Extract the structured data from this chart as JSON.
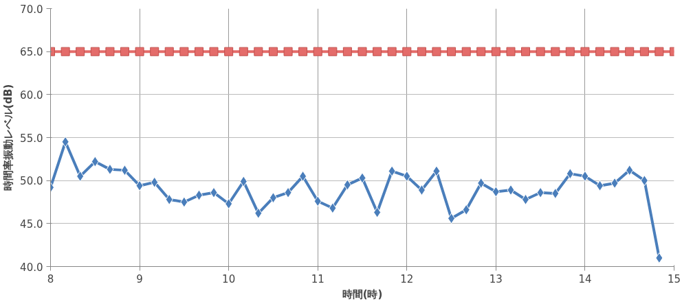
{
  "chart_data": {
    "type": "line",
    "xlabel": "時間(時)",
    "ylabel": "時間率振動レベル(dB)",
    "xlim": [
      8,
      15
    ],
    "xticks": [
      8,
      9,
      10,
      11,
      12,
      13,
      14,
      15
    ],
    "ylim": [
      40,
      70
    ],
    "yticks": [
      {
        "value": 40,
        "label": "40.0"
      },
      {
        "value": 45,
        "label": "45.0"
      },
      {
        "value": 50,
        "label": "50.0"
      },
      {
        "value": 55,
        "label": "55.0"
      },
      {
        "value": 60,
        "label": "60.0"
      },
      {
        "value": 65,
        "label": "65.0"
      },
      {
        "value": 70,
        "label": "70.0"
      }
    ],
    "grid": true,
    "line_style": "solid",
    "series": [
      {
        "color": "#4a7ebb",
        "marker": "diamond",
        "x": [
          8,
          8.167,
          8.333,
          8.5,
          8.667,
          8.833,
          9,
          9.167,
          9.333,
          9.5,
          9.667,
          9.833,
          10,
          10.167,
          10.333,
          10.5,
          10.667,
          10.833,
          11,
          11.167,
          11.333,
          11.5,
          11.667,
          11.833,
          12,
          12.167,
          12.333,
          12.5,
          12.667,
          12.833,
          13,
          13.167,
          13.333,
          13.5,
          13.667,
          13.833,
          14,
          14.167,
          14.333,
          14.5,
          14.667,
          14.833
        ],
        "values": [
          49.2,
          54.5,
          50.5,
          52.2,
          51.3,
          51.2,
          49.4,
          49.8,
          47.8,
          47.5,
          48.3,
          48.6,
          47.3,
          49.9,
          46.2,
          48.0,
          48.6,
          50.5,
          47.6,
          46.8,
          49.5,
          50.3,
          46.3,
          51.1,
          50.5,
          48.9,
          51.1,
          45.6,
          46.6,
          49.7,
          48.7,
          48.9,
          47.8,
          48.6,
          48.5,
          50.8,
          50.5,
          49.4,
          49.7,
          51.2,
          50.0,
          41.0
        ]
      },
      {
        "color": "#e46c6a",
        "marker": "square",
        "x": [
          8,
          8.167,
          8.333,
          8.5,
          8.667,
          8.833,
          9,
          9.167,
          9.333,
          9.5,
          9.667,
          9.833,
          10,
          10.167,
          10.333,
          10.5,
          10.667,
          10.833,
          11,
          11.167,
          11.333,
          11.5,
          11.667,
          11.833,
          12,
          12.167,
          12.333,
          12.5,
          12.667,
          12.833,
          13,
          13.167,
          13.333,
          13.5,
          13.667,
          13.833,
          14,
          14.167,
          14.333,
          14.5,
          14.667,
          14.833,
          15
        ],
        "values": [
          65,
          65,
          65,
          65,
          65,
          65,
          65,
          65,
          65,
          65,
          65,
          65,
          65,
          65,
          65,
          65,
          65,
          65,
          65,
          65,
          65,
          65,
          65,
          65,
          65,
          65,
          65,
          65,
          65,
          65,
          65,
          65,
          65,
          65,
          65,
          65,
          65,
          65,
          65,
          65,
          65,
          65,
          65
        ]
      }
    ]
  }
}
